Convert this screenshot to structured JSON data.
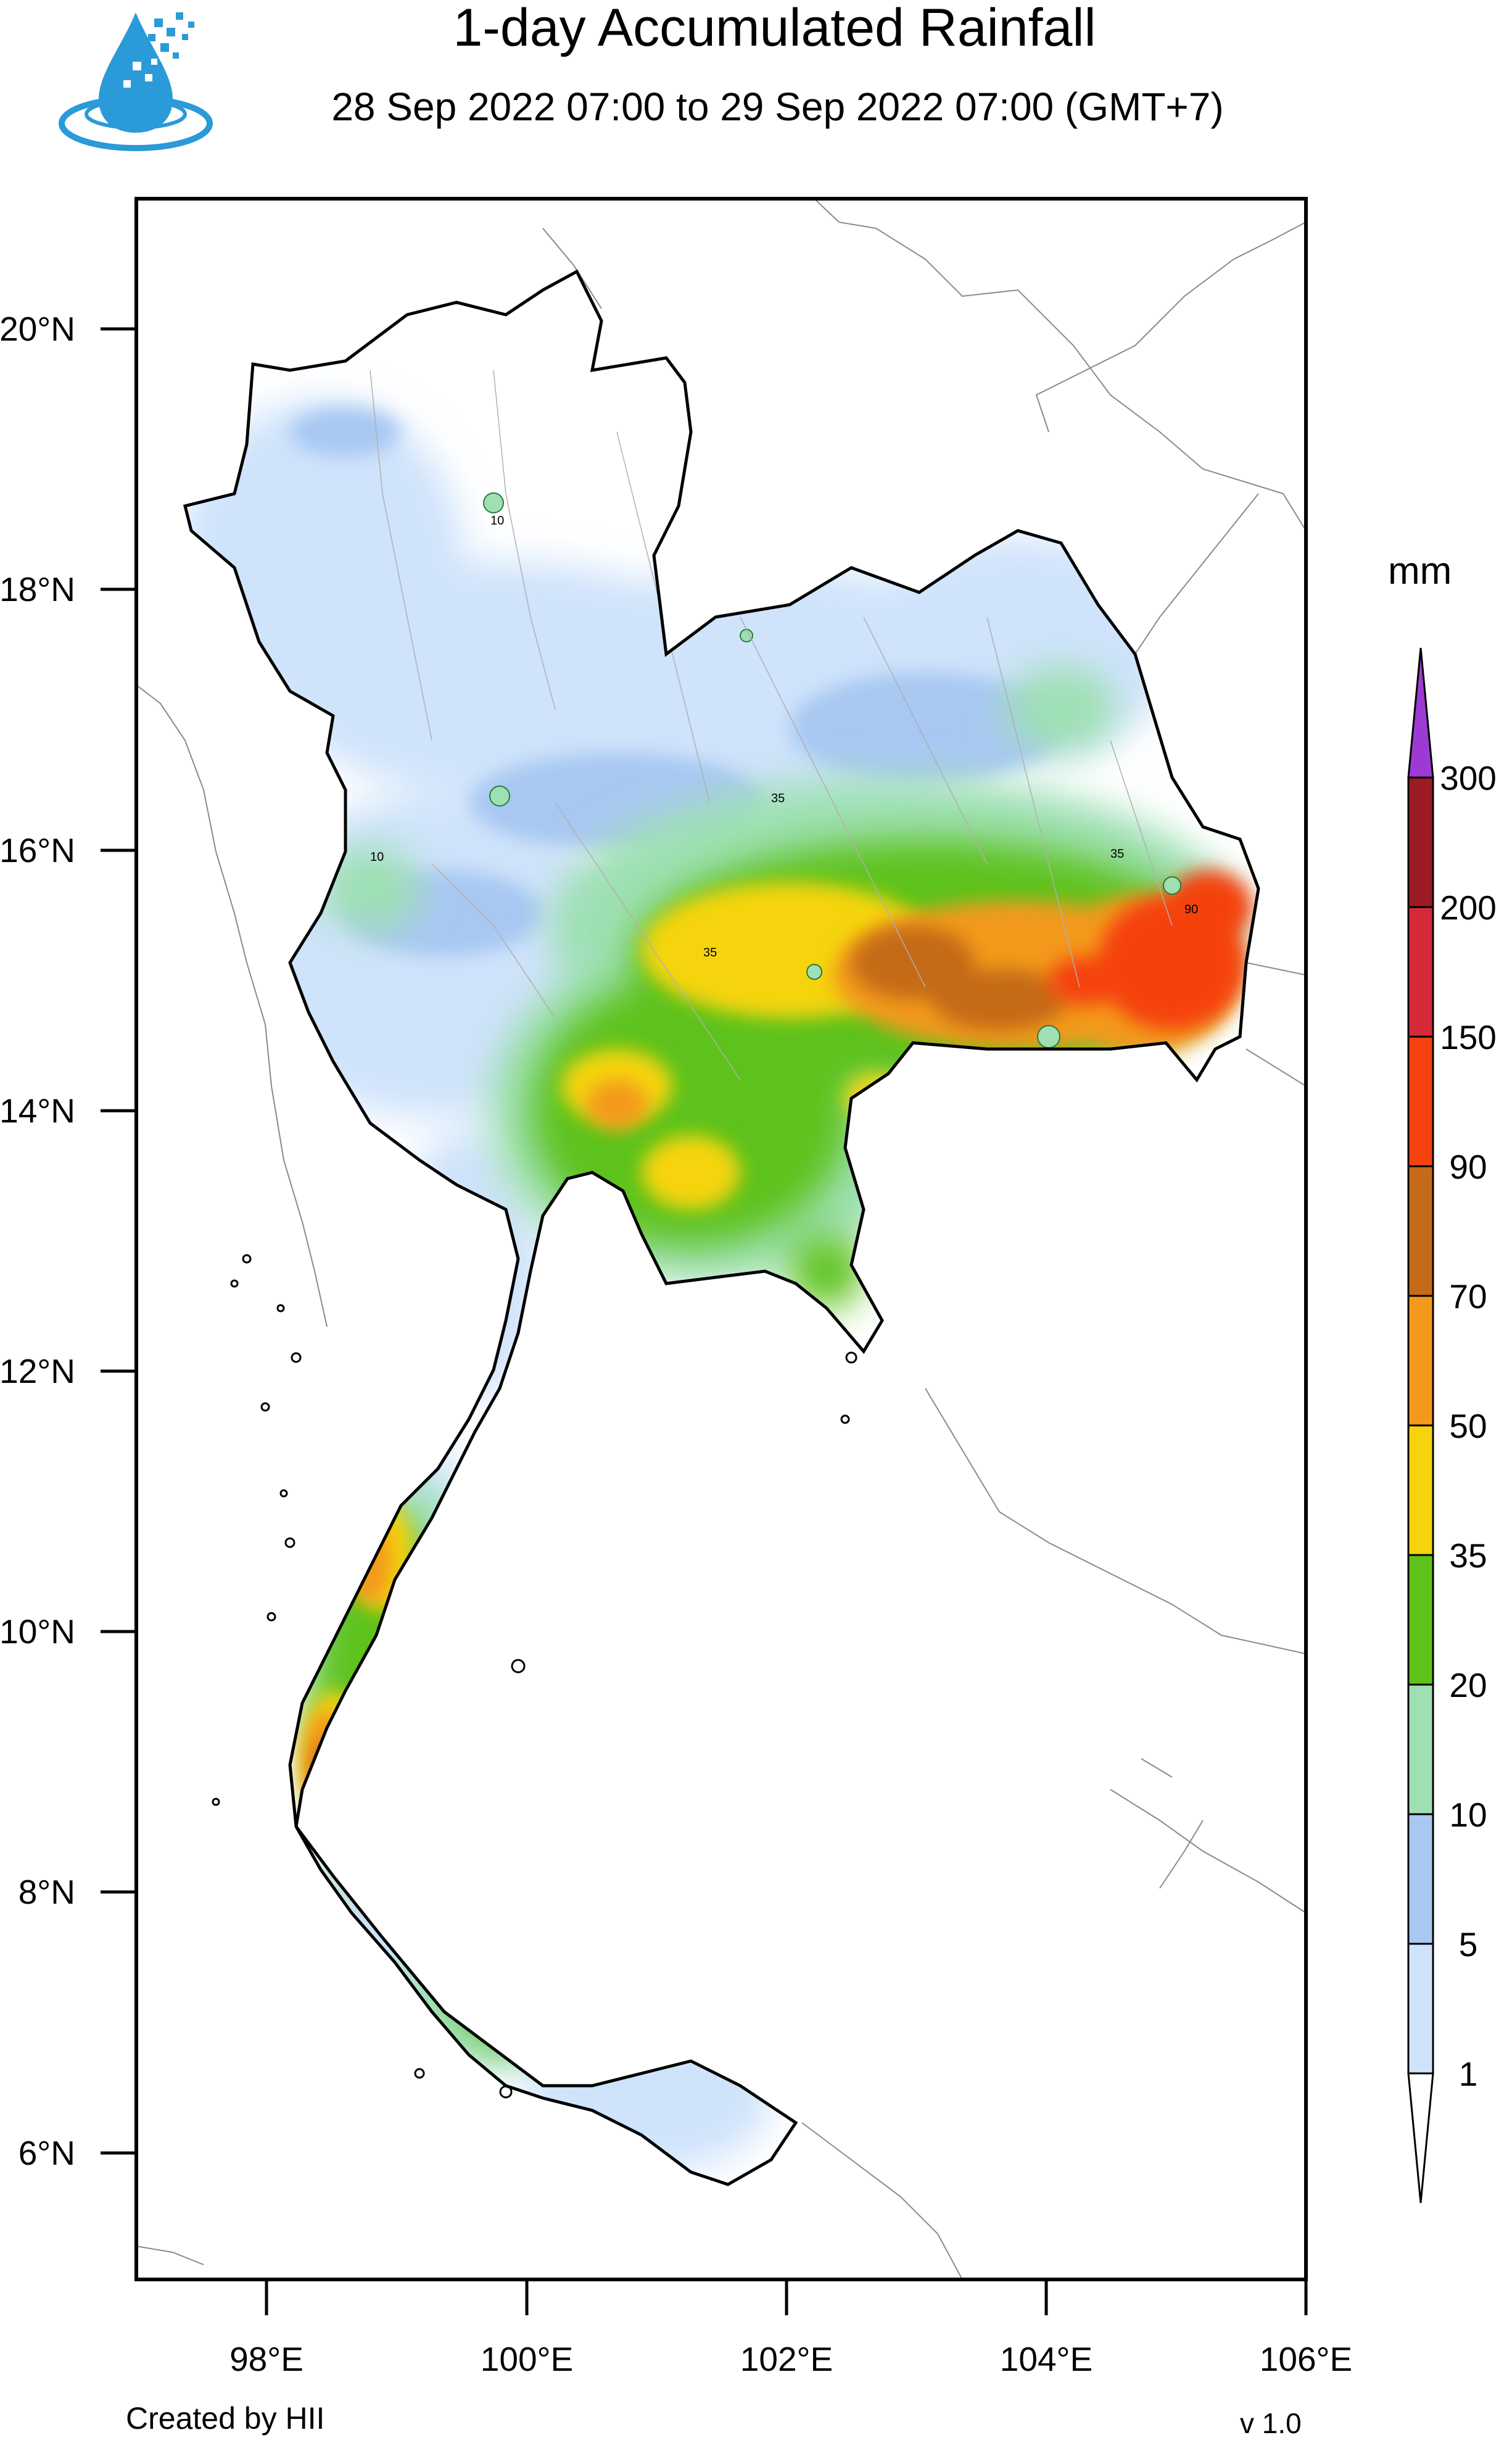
{
  "title": "1-day Accumulated Rainfall",
  "subtitle": "28 Sep 2022 07:00 to 29 Sep 2022 07:00 (GMT+7)",
  "logo_icon": "water-drop-logo-icon",
  "map": {
    "region": "Thailand",
    "lat_labels": [
      "20°N",
      "18°N",
      "16°N",
      "14°N",
      "12°N",
      "10°N",
      "8°N",
      "6°N"
    ],
    "lon_labels": [
      "98°E",
      "100°E",
      "102°E",
      "104°E",
      "106°E"
    ],
    "contour_labels": [
      "10",
      "35",
      "90"
    ]
  },
  "legend": {
    "unit": "mm",
    "levels": [
      "300",
      "200",
      "150",
      "90",
      "70",
      "50",
      "35",
      "20",
      "10",
      "5",
      "1"
    ],
    "colors": {
      "1": "#cfe3fb",
      "5": "#a8c8f2",
      "10": "#9ee0b4",
      "20": "#5dc21a",
      "35": "#f5d40f",
      "50": "#f39a1c",
      "70": "#c56a18",
      "90": "#f5420f",
      "150": "#d52a3a",
      "200": "#9b1b22",
      "300": "#9e3ad4"
    }
  },
  "footer": {
    "created_by": "Created by HII",
    "version": "v 1.0"
  }
}
